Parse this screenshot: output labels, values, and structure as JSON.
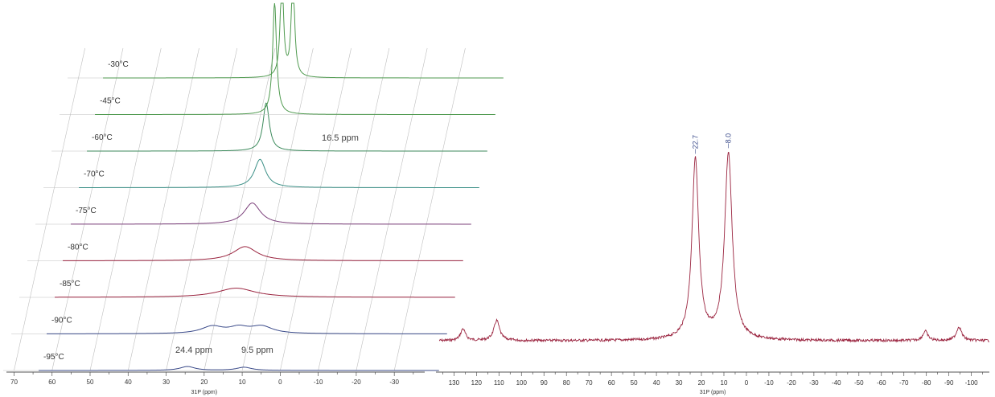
{
  "colors": {
    "green": "#4f9a4f",
    "green_dark": "#3c8a5c",
    "teal": "#3a8f86",
    "navy": "#3b4b8a",
    "purple": "#7b3f7a",
    "crimson": "#9b2540",
    "axis": "#555555",
    "grid": "#bfbfbf"
  },
  "chart_data": [
    {
      "type": "line",
      "title": "",
      "xlabel": "31P (ppm)",
      "ylabel": "",
      "x_ticks": [
        70,
        60,
        50,
        40,
        30,
        20,
        10,
        0,
        -10,
        -20,
        -30
      ],
      "xlim": [
        72,
        -38
      ],
      "series": [
        {
          "name": "-95°C",
          "color_key": "navy",
          "peaks": [
            {
              "x": 24.4,
              "h": 0.055,
              "w": 2.4
            },
            {
              "x": 9.5,
              "h": 0.045,
              "w": 2.4
            }
          ]
        },
        {
          "name": "-90°C",
          "color_key": "navy",
          "peaks": [
            {
              "x": 20,
              "h": 0.1,
              "w": 3.5
            },
            {
              "x": 13,
              "h": 0.08,
              "w": 3
            },
            {
              "x": 7,
              "h": 0.1,
              "w": 3.5
            }
          ]
        },
        {
          "name": "-85°C",
          "color_key": "crimson",
          "peaks": [
            {
              "x": 15.8,
              "h": 0.13,
              "w": 6
            }
          ]
        },
        {
          "name": "-80°C",
          "color_key": "crimson",
          "peaks": [
            {
              "x": 15.6,
              "h": 0.2,
              "w": 3.8
            }
          ]
        },
        {
          "name": "-75°C",
          "color_key": "purple",
          "peaks": [
            {
              "x": 15.8,
              "h": 0.3,
              "w": 2.6
            }
          ]
        },
        {
          "name": "-70°C",
          "color_key": "teal",
          "peaks": [
            {
              "x": 15.9,
              "h": 0.4,
              "w": 1.8
            }
          ]
        },
        {
          "name": "-60°C",
          "color_key": "green_dark",
          "peaks": [
            {
              "x": 16.4,
              "h": 0.68,
              "w": 1.0
            }
          ]
        },
        {
          "name": "-45°C",
          "color_key": "green",
          "peaks": [
            {
              "x": 16.3,
              "h": 0.78,
              "w": 0.75
            },
            {
              "x": 16.3,
              "h": 0.82,
              "w": 0.5
            }
          ]
        },
        {
          "name": "-30°C",
          "color_key": "green",
          "peaks": [
            {
              "x": 16.5,
              "h": 1.5,
              "w": 0.5
            },
            {
              "x": 13.6,
              "h": 1.5,
              "w": 0.5
            }
          ]
        }
      ],
      "annotations": [
        {
          "text": "24.4 ppm"
        },
        {
          "text": "9.5 ppm"
        },
        {
          "text": "16.5 ppm"
        }
      ]
    },
    {
      "type": "line",
      "title": "",
      "xlabel": "31P (ppm)",
      "ylabel": "",
      "x_ticks": [
        130,
        120,
        110,
        100,
        90,
        80,
        70,
        60,
        50,
        40,
        30,
        20,
        10,
        0,
        -10,
        -20,
        -30,
        -40,
        -50,
        -60,
        -70,
        -80,
        -90,
        -100
      ],
      "xlim": [
        138,
        -108
      ],
      "series": [
        {
          "name": "",
          "color_key": "crimson",
          "peaks": [
            {
              "x": 126,
              "h": 0.055,
              "w": 1.3
            },
            {
              "x": 111,
              "h": 0.095,
              "w": 1.5
            },
            {
              "x": 22.7,
              "h": 0.85,
              "w": 1.8
            },
            {
              "x": 8.0,
              "h": 0.88,
              "w": 2.0
            },
            {
              "x": -79.5,
              "h": 0.045,
              "w": 1.3
            },
            {
              "x": -94.5,
              "h": 0.065,
              "w": 1.4
            }
          ]
        }
      ],
      "peak_labels": [
        {
          "x": 22.7,
          "text": "22.7"
        },
        {
          "x": 8.0,
          "text": "8.0"
        }
      ]
    }
  ]
}
